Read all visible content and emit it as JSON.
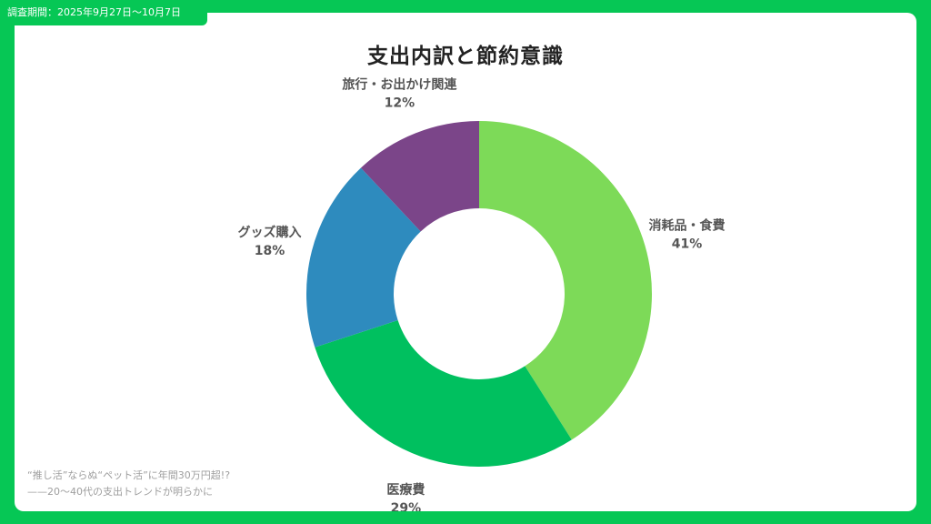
{
  "header": {
    "survey_period": "調査期間：2025年9月27日〜10月7日"
  },
  "caption": {
    "line1": "“推し活”ならぬ“ペット活”に年間30万円超!?",
    "line2": "——20〜40代の支出トレンドが明らかに"
  },
  "colors": {
    "frame": "#06c755",
    "card": "#ffffff"
  },
  "chart_data": {
    "type": "pie",
    "title": "支出内訳と節約意識",
    "donut": true,
    "categories": [
      "消耗品・食費",
      "医療費",
      "グッズ購入",
      "旅行・お出かけ関連"
    ],
    "values": [
      41,
      29,
      18,
      12
    ],
    "value_labels": [
      "41%",
      "29%",
      "18%",
      "12%"
    ],
    "colors": [
      "#7dda58",
      "#00c05f",
      "#2e8bbe",
      "#7b4589"
    ],
    "start": "top",
    "direction": "clockwise"
  }
}
